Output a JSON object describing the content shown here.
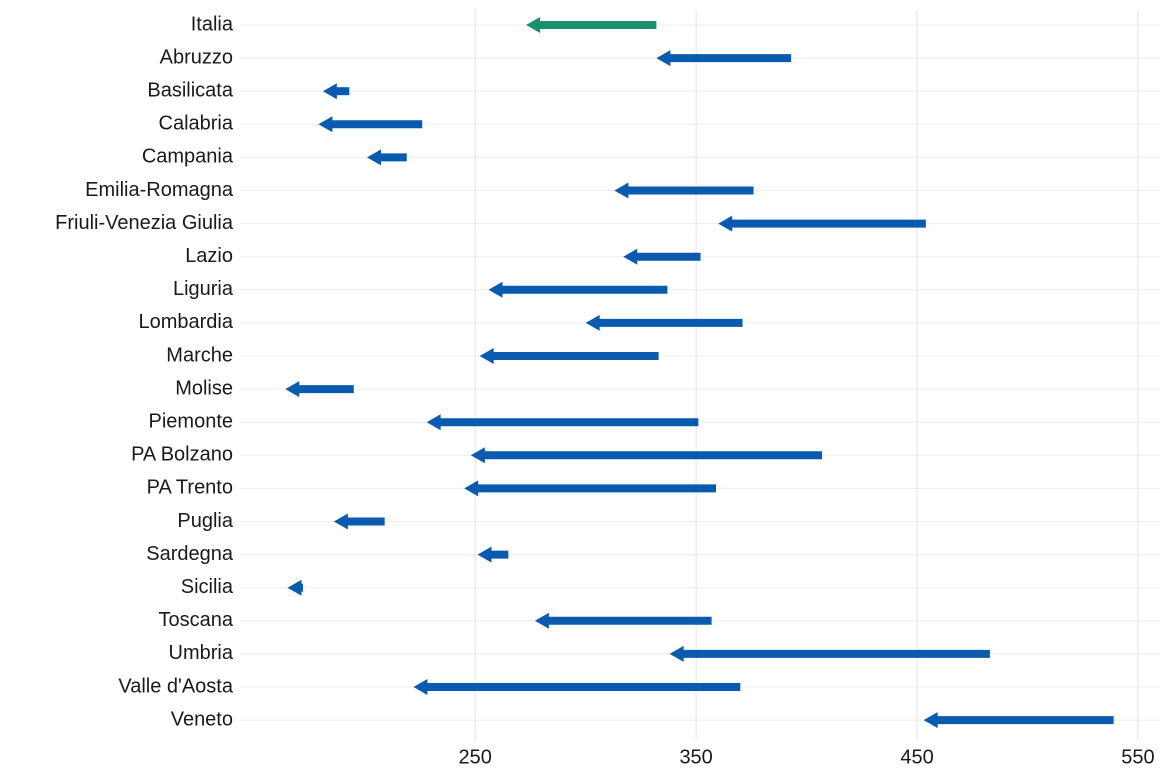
{
  "chart_data": {
    "type": "arrow",
    "categories": [
      "Italia",
      "Abruzzo",
      "Basilicata",
      "Calabria",
      "Campania",
      "Emilia-Romagna",
      "Friuli-Venezia Giulia",
      "Lazio",
      "Liguria",
      "Lombardia",
      "Marche",
      "Molise",
      "Piemonte",
      "PA Bolzano",
      "PA Trento",
      "Puglia",
      "Sardegna",
      "Sicilia",
      "Toscana",
      "Umbria",
      "Valle d'Aosta",
      "Veneto"
    ],
    "start": [
      332,
      393,
      193,
      226,
      219,
      376,
      454,
      352,
      337,
      371,
      333,
      195,
      351,
      407,
      359,
      209,
      265,
      172,
      357,
      483,
      370,
      539
    ],
    "end": [
      273,
      332,
      181,
      179,
      201,
      313,
      360,
      317,
      256,
      300,
      252,
      164,
      228,
      248,
      245,
      186,
      251,
      165,
      277,
      338,
      222,
      453
    ],
    "colors": [
      "#1a9070",
      "#0a5bb0",
      "#0a5bb0",
      "#0a5bb0",
      "#0a5bb0",
      "#0a5bb0",
      "#0a5bb0",
      "#0a5bb0",
      "#0a5bb0",
      "#0a5bb0",
      "#0a5bb0",
      "#0a5bb0",
      "#0a5bb0",
      "#0a5bb0",
      "#0a5bb0",
      "#0a5bb0",
      "#0a5bb0",
      "#0a5bb0",
      "#0a5bb0",
      "#0a5bb0",
      "#0a5bb0",
      "#0a5bb0"
    ],
    "xlim": [
      143.5,
      560
    ],
    "xticks": [
      250,
      350,
      450,
      550
    ],
    "grid": true
  }
}
